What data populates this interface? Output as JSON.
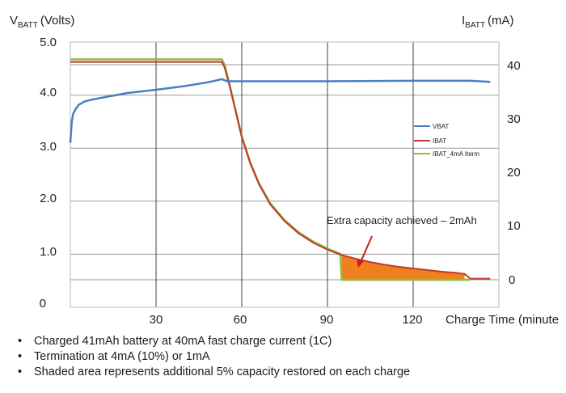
{
  "chart_data": {
    "type": "line",
    "x_axis": {
      "label": "Charge Time (minute",
      "ticks": [
        30,
        60,
        90,
        120
      ],
      "range": [
        0,
        150
      ]
    },
    "y_left": {
      "label_main": "V",
      "label_sub": "BATT",
      "label_unit": "(Volts)",
      "ticks": [
        "5.0",
        "4.0",
        "3.0",
        "2.0",
        "1.0",
        "0"
      ],
      "range": [
        0,
        5
      ]
    },
    "y_right": {
      "label_main": "I",
      "label_sub": "BATT",
      "label_unit": "(mA)",
      "ticks": [
        "40",
        "30",
        "20",
        "10",
        "0"
      ],
      "range": [
        0,
        40
      ]
    },
    "grid": true,
    "legend_position": "right",
    "series": [
      {
        "name": "VBAT",
        "axis": "left",
        "color": "#4a7ec2",
        "points": [
          [
            0,
            3.1
          ],
          [
            0.5,
            3.5
          ],
          [
            1,
            3.65
          ],
          [
            2,
            3.75
          ],
          [
            3,
            3.82
          ],
          [
            5,
            3.88
          ],
          [
            8,
            3.92
          ],
          [
            12,
            3.96
          ],
          [
            20,
            4.04
          ],
          [
            30,
            4.1
          ],
          [
            40,
            4.17
          ],
          [
            48,
            4.24
          ],
          [
            53,
            4.3
          ],
          [
            55,
            4.26
          ],
          [
            60,
            4.26
          ],
          [
            90,
            4.26
          ],
          [
            120,
            4.27
          ],
          [
            140,
            4.27
          ],
          [
            147,
            4.25
          ]
        ]
      },
      {
        "name": "IBAT",
        "axis": "right",
        "color": "#c0392b",
        "points": [
          [
            0,
            40.5
          ],
          [
            53,
            40.5
          ],
          [
            54,
            39.5
          ],
          [
            56,
            35.5
          ],
          [
            58,
            31
          ],
          [
            60,
            26.5
          ],
          [
            63,
            21.6
          ],
          [
            66,
            17.8
          ],
          [
            70,
            14
          ],
          [
            75,
            10.9
          ],
          [
            80,
            8.6
          ],
          [
            85,
            6.9
          ],
          [
            90,
            5.6
          ],
          [
            95,
            4.6
          ],
          [
            100,
            3.9
          ],
          [
            105,
            3.3
          ],
          [
            110,
            2.8
          ],
          [
            115,
            2.4
          ],
          [
            120,
            2.1
          ],
          [
            125,
            1.8
          ],
          [
            130,
            1.5
          ],
          [
            135,
            1.3
          ],
          [
            138,
            1.1
          ],
          [
            140,
            0.2
          ],
          [
            147,
            0.2
          ]
        ]
      },
      {
        "name": "IBAT_4mA Iterm",
        "axis": "right",
        "color": "#8cbd3f",
        "points": [
          [
            0,
            41
          ],
          [
            53,
            41
          ],
          [
            54,
            40
          ],
          [
            56,
            35.7
          ],
          [
            58,
            31.2
          ],
          [
            60,
            26.7
          ],
          [
            63,
            21.8
          ],
          [
            66,
            18
          ],
          [
            70,
            14.2
          ],
          [
            75,
            11.1
          ],
          [
            80,
            8.8
          ],
          [
            85,
            7.1
          ],
          [
            90,
            5.8
          ],
          [
            94.5,
            4.8
          ],
          [
            95,
            0
          ],
          [
            140,
            0
          ]
        ]
      }
    ],
    "shaded_area": {
      "x_from": 95,
      "x_to": 138,
      "color": "#f07f20"
    },
    "annotation": "Extra capacity achieved – 2mAh"
  },
  "notes": [
    "Charged 41mAh battery at 40mA fast charge current (1C)",
    "Termination at 4mA (10%) or 1mA",
    "Shaded area represents additional 5% capacity restored on each charge"
  ]
}
